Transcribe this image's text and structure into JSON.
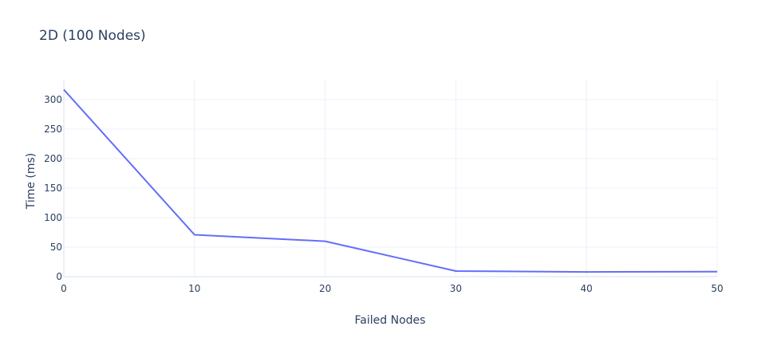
{
  "chart_data": {
    "type": "line",
    "title": "2D (100 Nodes)",
    "xlabel": "Failed Nodes",
    "ylabel": "Time (ms)",
    "x": [
      0,
      10,
      20,
      30,
      40,
      50
    ],
    "series": [
      {
        "values": [
          317,
          71,
          60,
          9.5,
          8,
          8.5
        ],
        "color": "#636efa"
      }
    ],
    "xlim": [
      0,
      50
    ],
    "ylim": [
      0,
      317
    ],
    "xticks": [
      0,
      10,
      20,
      30,
      40,
      50
    ],
    "yticks": [
      0,
      50,
      100,
      150,
      200,
      250,
      300
    ],
    "grid": true,
    "legend": "none"
  }
}
